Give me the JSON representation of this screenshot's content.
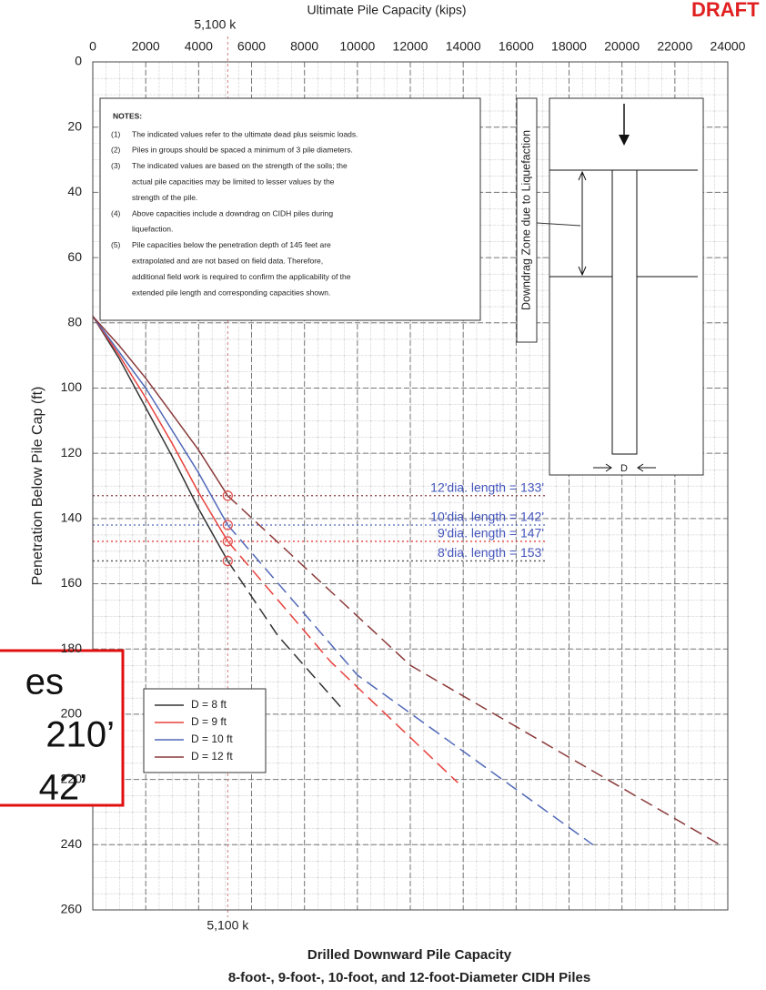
{
  "chart_data": {
    "type": "line",
    "title": "Ultimate Pile Capacity (kips)",
    "stamp": "DRAFT",
    "y_label": "Penetration Below Pile Cap (ft)",
    "caption": [
      "Drilled Downward Pile Capacity",
      "8-foot-, 9-foot-, 10-foot, and 12-foot-Diameter CIDH Piles"
    ],
    "xlim": [
      0,
      24000
    ],
    "xticks": [
      0,
      2000,
      4000,
      6000,
      8000,
      10000,
      12000,
      14000,
      16000,
      18000,
      20000,
      22000,
      24000
    ],
    "ylim": [
      0,
      260
    ],
    "yticks": [
      0,
      20,
      40,
      60,
      80,
      100,
      120,
      140,
      160,
      180,
      200,
      220,
      240,
      260
    ],
    "y_inverted": true,
    "grid": true,
    "legend": "lower left",
    "reference": {
      "value": 5100,
      "label": "5,100 k"
    },
    "series": [
      {
        "name": "D = 8 ft",
        "color": "#333333",
        "x": [
          0,
          1000,
          2000,
          3000,
          4000,
          5100
        ],
        "values": [
          78,
          91,
          106,
          121,
          137,
          153
        ],
        "extrapolated_x": [
          5100,
          7000,
          9500
        ],
        "extrapolated_values": [
          153,
          176,
          199
        ]
      },
      {
        "name": "D = 9 ft",
        "color": "#e8413c",
        "x": [
          0,
          1000,
          2000,
          3000,
          4000,
          5100
        ],
        "values": [
          78,
          90,
          103,
          117,
          132,
          147
        ],
        "extrapolated_x": [
          5100,
          9000,
          13800
        ],
        "extrapolated_values": [
          147,
          184,
          221
        ]
      },
      {
        "name": "D = 10 ft",
        "color": "#5068b8",
        "x": [
          0,
          1000,
          2000,
          3000,
          4000,
          5100
        ],
        "values": [
          78,
          89,
          100,
          113,
          126,
          142
        ],
        "extrapolated_x": [
          5100,
          10000,
          18900
        ],
        "extrapolated_values": [
          142,
          188,
          240
        ]
      },
      {
        "name": "D = 12 ft",
        "color": "#8b3a3a",
        "x": [
          0,
          1000,
          2000,
          3000,
          4000,
          5100
        ],
        "values": [
          78,
          87,
          97,
          108,
          119,
          133
        ],
        "extrapolated_x": [
          5100,
          12000,
          23700
        ],
        "extrapolated_values": [
          133,
          185,
          240
        ]
      }
    ],
    "annotations": [
      {
        "text": "12'dia. length = 133'",
        "x": 5100,
        "y": 133,
        "color": "#8b3a3a"
      },
      {
        "text": "10'dia. length = 142'",
        "x": 5100,
        "y": 142,
        "color": "#5068b8"
      },
      {
        "text": "9'dia. length = 147'",
        "x": 5100,
        "y": 147,
        "color": "#e8413c"
      },
      {
        "text": "8'dia. length = 153'",
        "x": 5100,
        "y": 153,
        "color": "#555555"
      }
    ]
  },
  "notes": {
    "heading": "NOTES:",
    "items": [
      {
        "num": "(1)",
        "lines": [
          "The indicated values refer to the ultimate dead plus seismic loads."
        ]
      },
      {
        "num": "(2)",
        "lines": [
          "Piles in groups should be spaced a minimum of 3 pile diameters."
        ]
      },
      {
        "num": "(3)",
        "lines": [
          "The indicated values are based on the strength of the soils; the",
          "actual pile capacities may be limited to lesser values by the",
          "strength of the pile."
        ]
      },
      {
        "num": "(4)",
        "lines": [
          "Above capacities include a downdrag on CIDH piles during",
          "liquefaction."
        ]
      },
      {
        "num": "(5)",
        "lines": [
          "Pile capacities below the penetration depth of 145 feet are",
          "extrapolated and are not based on field data.  Therefore,",
          "additional field work is required to confirm the applicability of the",
          "extended pile length and corresponding capacities shown."
        ]
      }
    ]
  },
  "diagram": {
    "label": "Downdrag Zone due to Liquefaction",
    "dimension": "D"
  },
  "callout": {
    "lines": [
      "es",
      "210’",
      "42’"
    ]
  }
}
